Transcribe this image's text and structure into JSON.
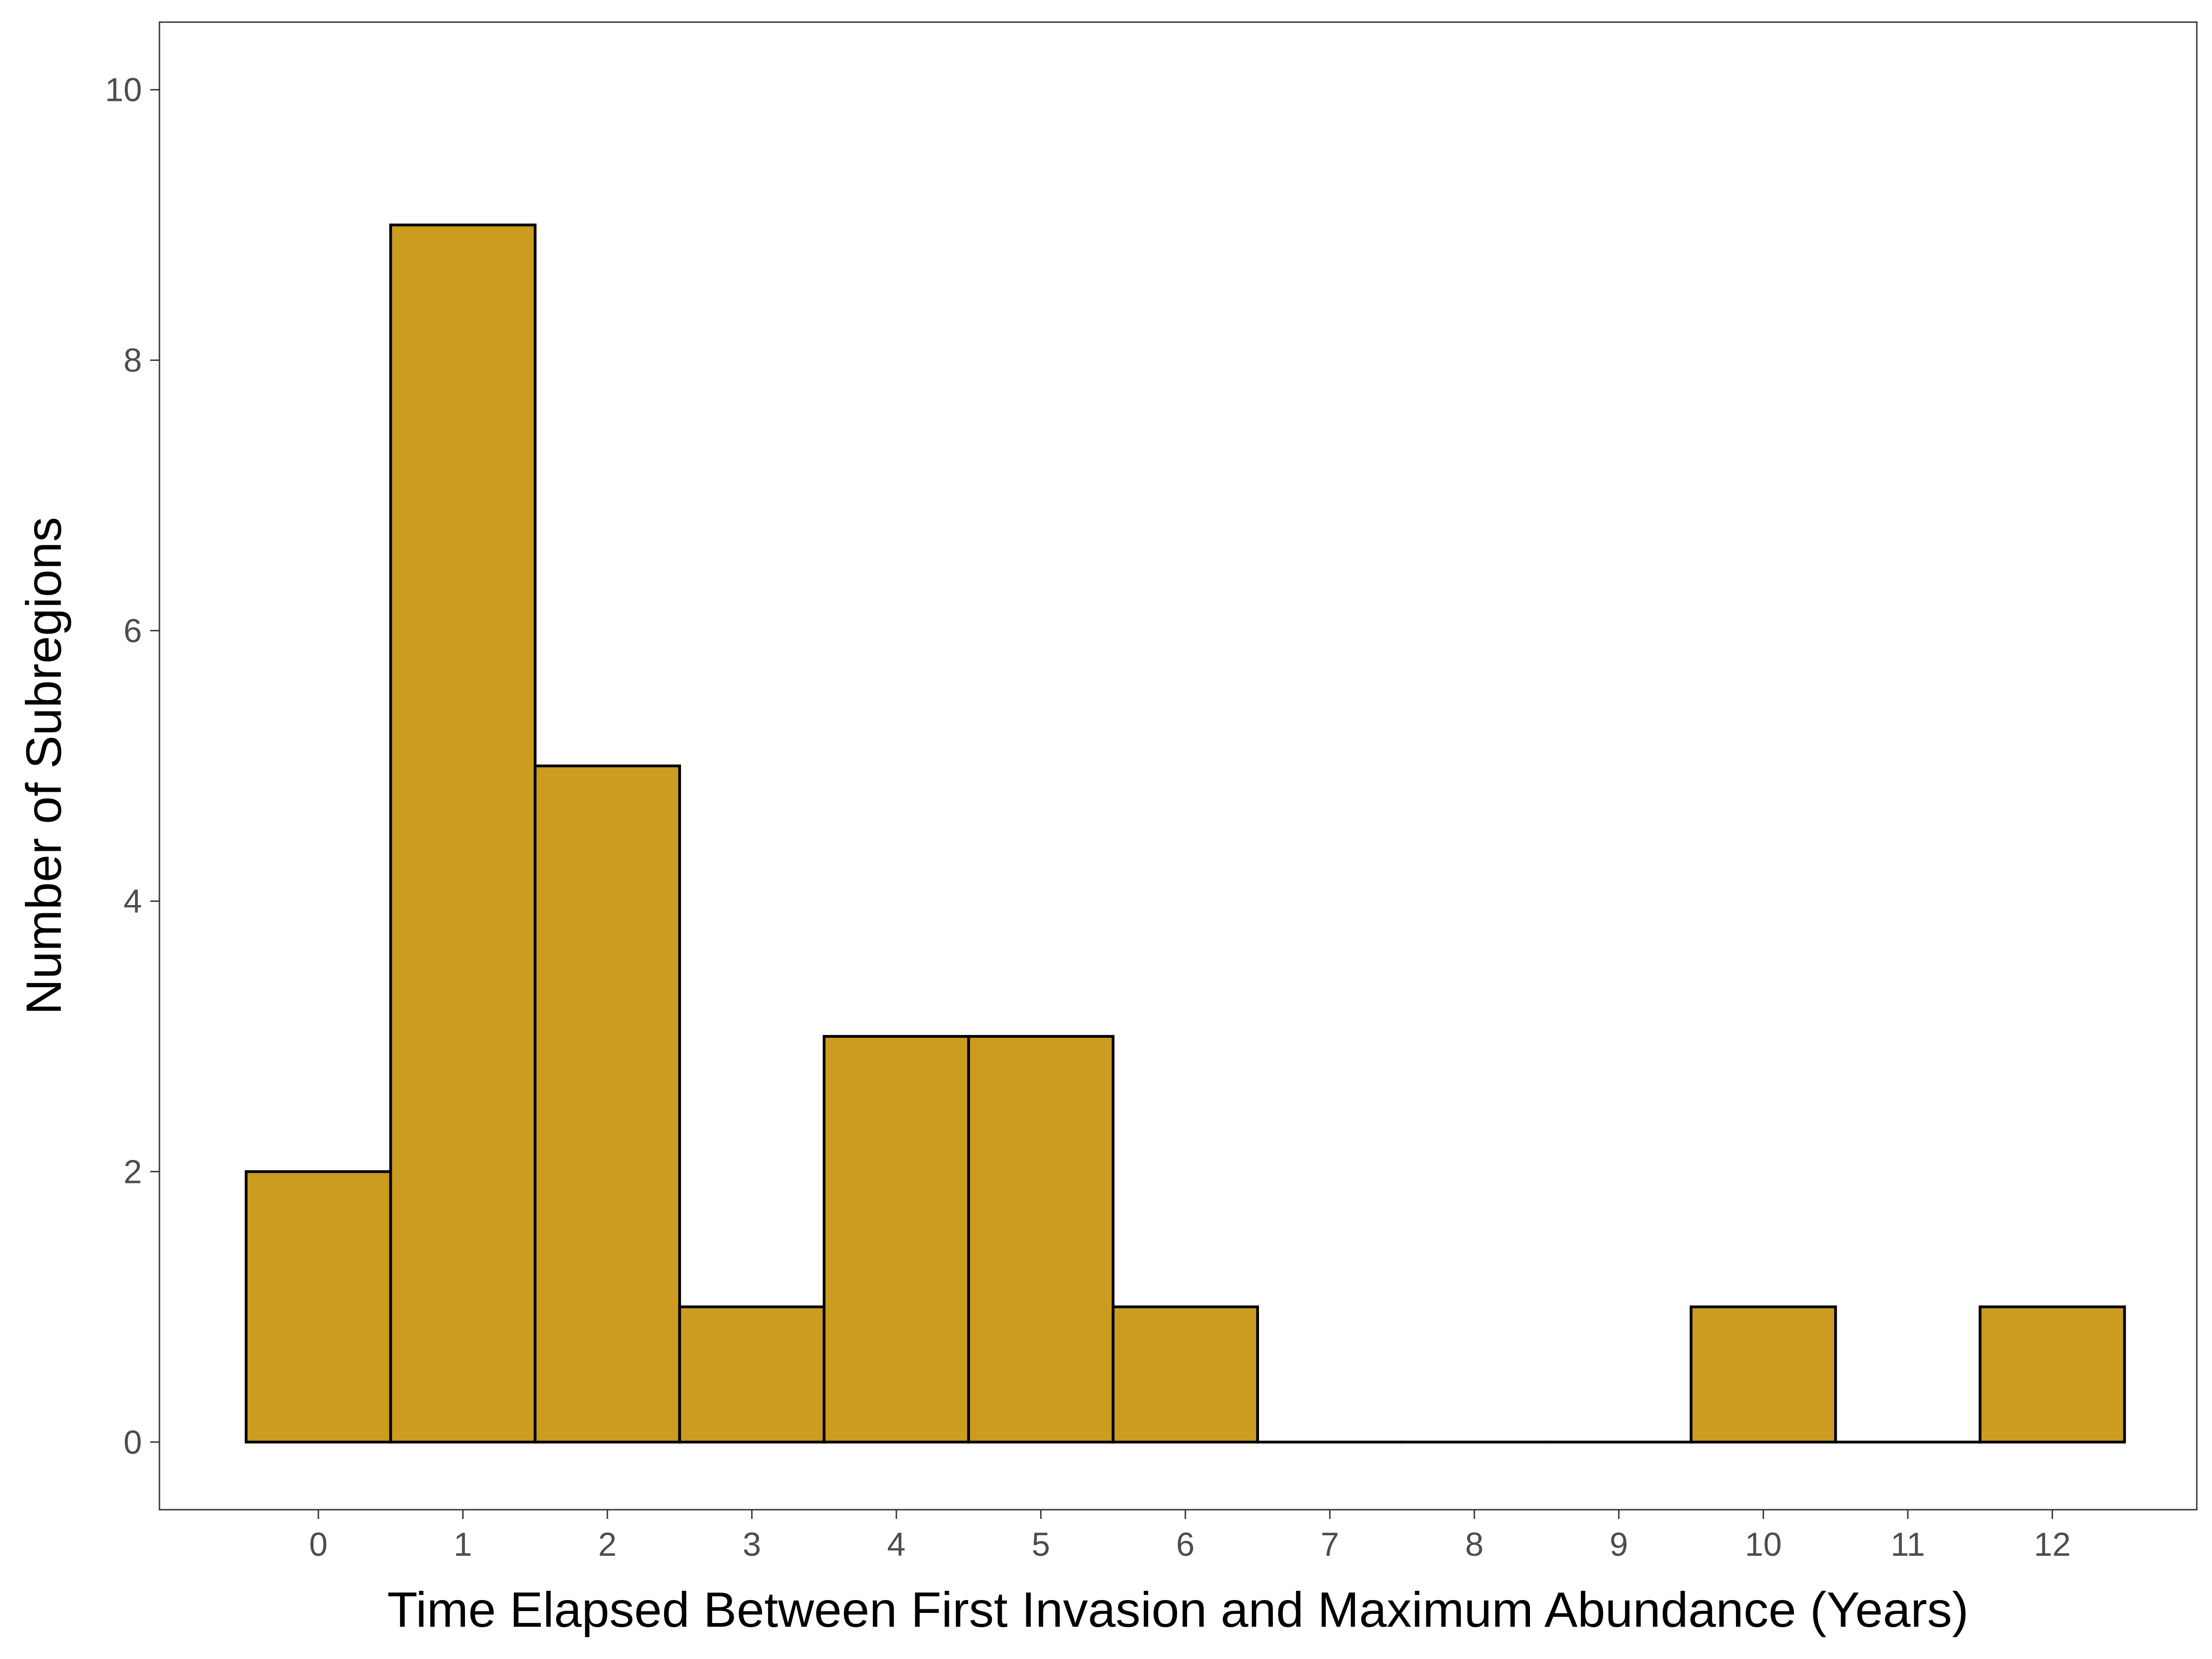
{
  "chart_data": {
    "type": "bar",
    "chart_subtype": "histogram",
    "title": "",
    "xlabel": "Time Elapsed Between First Invasion and Maximum Abundance (Years)",
    "ylabel": "Number of Subregions",
    "categories": [
      "0",
      "1",
      "2",
      "3",
      "4",
      "5",
      "6",
      "7",
      "8",
      "9",
      "10",
      "11",
      "12"
    ],
    "x": [
      0,
      1,
      2,
      3,
      4,
      5,
      6,
      7,
      8,
      9,
      10,
      11,
      12
    ],
    "values": [
      2,
      9,
      5,
      1,
      3,
      3,
      1,
      0,
      0,
      0,
      1,
      0,
      1
    ],
    "bin_width": 1,
    "xlim": [
      -1.1,
      13.0
    ],
    "ylim": [
      -0.5,
      10.5
    ],
    "y_ticks": [
      0,
      2,
      4,
      6,
      8,
      10
    ],
    "x_ticks": [
      0,
      1,
      2,
      3,
      4,
      5,
      6,
      7,
      8,
      9,
      10,
      11,
      12
    ],
    "bar_fill": "#CC9C20",
    "bar_stroke": "#000000",
    "grid": false,
    "legend": "none"
  }
}
